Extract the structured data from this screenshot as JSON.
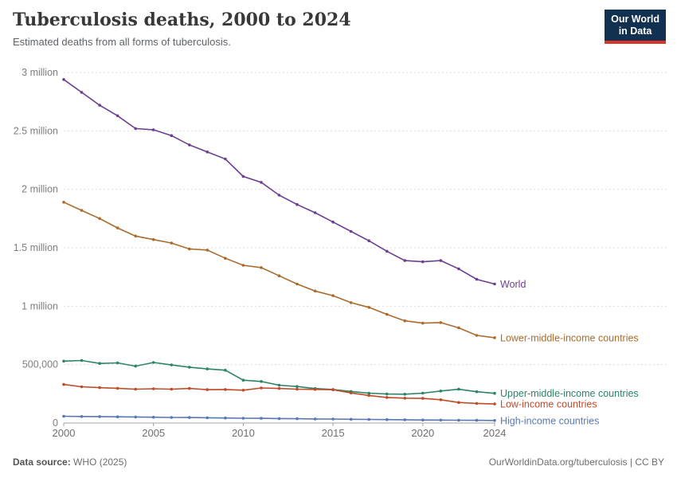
{
  "header": {
    "logo": {
      "line1": "Our World",
      "line2": "in Data",
      "bg_color": "#12304f",
      "accent_color": "#d7352a"
    }
  },
  "footer": {
    "source_label": "Data source:",
    "source_value": " WHO (2025)",
    "credit": "OurWorldinData.org/tuberculosis | CC BY"
  },
  "chart_data": {
    "type": "line",
    "title": "Tuberculosis deaths, 2000 to 2024",
    "subtitle": "Estimated deaths from all forms of tuberculosis.",
    "xlabel": "",
    "ylabel": "",
    "ylim": [
      0,
      3000000
    ],
    "grid": "horizontal dashed gridlines at 500,000 intervals",
    "legend_position": "labels at right end of each line",
    "x": [
      2000,
      2001,
      2002,
      2003,
      2004,
      2005,
      2006,
      2007,
      2008,
      2009,
      2010,
      2011,
      2012,
      2013,
      2014,
      2015,
      2016,
      2017,
      2018,
      2019,
      2020,
      2021,
      2022,
      2023,
      2024
    ],
    "xticks": [
      2000,
      2005,
      2010,
      2015,
      2020,
      2024
    ],
    "yticks": [
      {
        "value": 0,
        "label": "0"
      },
      {
        "value": 500000,
        "label": "500,000"
      },
      {
        "value": 1000000,
        "label": "1 million"
      },
      {
        "value": 1500000,
        "label": "1.5 million"
      },
      {
        "value": 2000000,
        "label": "2 million"
      },
      {
        "value": 2500000,
        "label": "2.5 million"
      },
      {
        "value": 3000000,
        "label": "3 million"
      }
    ],
    "series": [
      {
        "name": "World",
        "color": "#6d3e91",
        "values": [
          2940000,
          2830000,
          2720000,
          2630000,
          2520000,
          2510000,
          2460000,
          2380000,
          2320000,
          2260000,
          2110000,
          2060000,
          1950000,
          1870000,
          1800000,
          1720000,
          1640000,
          1560000,
          1470000,
          1390000,
          1380000,
          1390000,
          1320000,
          1230000,
          1190000
        ]
      },
      {
        "name": "Lower-middle-income countries",
        "color": "#aa6b2c",
        "values": [
          1890000,
          1820000,
          1750000,
          1670000,
          1600000,
          1570000,
          1540000,
          1490000,
          1480000,
          1410000,
          1350000,
          1330000,
          1260000,
          1190000,
          1130000,
          1090000,
          1030000,
          990000,
          930000,
          875000,
          855000,
          860000,
          815000,
          750000,
          730000
        ]
      },
      {
        "name": "Upper-middle-income countries",
        "color": "#2c8465",
        "values": [
          530000,
          535000,
          510000,
          515000,
          487000,
          518000,
          497000,
          478000,
          463000,
          452000,
          367000,
          356000,
          324000,
          312000,
          295000,
          287000,
          270000,
          256000,
          248000,
          247000,
          256000,
          274000,
          289000,
          268000,
          254000
        ]
      },
      {
        "name": "Low-income countries",
        "color": "#bf4b28",
        "values": [
          330000,
          310000,
          303000,
          297000,
          290000,
          293000,
          290000,
          296000,
          286000,
          287000,
          281000,
          300000,
          296000,
          290000,
          288000,
          285000,
          258000,
          236000,
          219000,
          213000,
          211000,
          199000,
          176000,
          168000,
          163000
        ]
      },
      {
        "name": "High-income countries",
        "color": "#5878b3",
        "values": [
          58000,
          56000,
          55000,
          53000,
          52000,
          50000,
          48000,
          47000,
          45000,
          43000,
          41000,
          40000,
          38000,
          37000,
          35000,
          34000,
          32000,
          31000,
          29000,
          28000,
          26000,
          25000,
          24000,
          23000,
          22000
        ]
      }
    ]
  }
}
